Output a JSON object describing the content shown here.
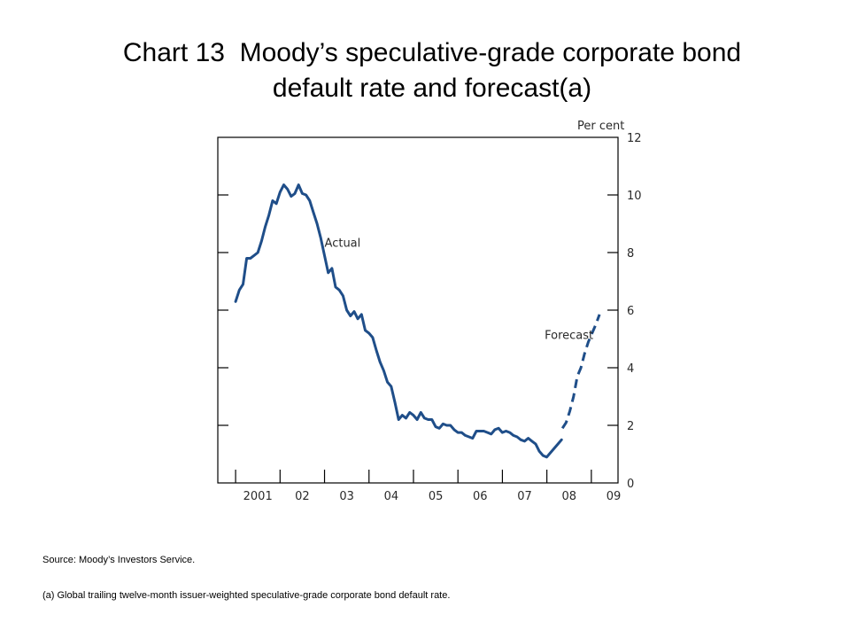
{
  "title": {
    "line1": "Chart 13  Moody’s speculative-grade corporate bond",
    "line2": "default rate and forecast(a)"
  },
  "notes": {
    "source": "Source:  Moody’s Investors Service.",
    "footnote": "(a)   Global trailing twelve-month issuer-weighted speculative-grade corporate bond default rate."
  },
  "colors": {
    "line": "#1f4e89",
    "axis": "#000000"
  },
  "chart_data": {
    "type": "line",
    "title": "Chart 13  Moody’s speculative-grade corporate bond default rate and forecast(a)",
    "xlabel": "",
    "ylabel": "",
    "y_unit_label": "Per cent",
    "ylim": [
      0,
      12
    ],
    "y_ticks": [
      0,
      2,
      4,
      6,
      8,
      10,
      12
    ],
    "y_axis_side": "right",
    "x_range": [
      2000.6,
      2009.6
    ],
    "x_ticks": [
      {
        "label": "2001",
        "year": 2001
      },
      {
        "label": "02",
        "year": 2002
      },
      {
        "label": "03",
        "year": 2003
      },
      {
        "label": "04",
        "year": 2004
      },
      {
        "label": "05",
        "year": 2005
      },
      {
        "label": "06",
        "year": 2006
      },
      {
        "label": "07",
        "year": 2007
      },
      {
        "label": "08",
        "year": 2008
      },
      {
        "label": "09",
        "year": 2009
      }
    ],
    "grid": false,
    "series": [
      {
        "name": "Actual",
        "style": "solid",
        "start_year": 2001,
        "step": 0.0833,
        "values": [
          6.3,
          6.7,
          6.9,
          7.8,
          7.8,
          7.9,
          8.0,
          8.4,
          8.9,
          9.3,
          9.8,
          9.7,
          10.1,
          10.35,
          10.2,
          9.95,
          10.05,
          10.35,
          10.05,
          10.0,
          9.8,
          9.4,
          9.0,
          8.5,
          7.9,
          7.3,
          7.45,
          6.8,
          6.7,
          6.5,
          6.0,
          5.8,
          5.95,
          5.7,
          5.85,
          5.3,
          5.2,
          5.05,
          4.6,
          4.2,
          3.9,
          3.5,
          3.35,
          2.8,
          2.2,
          2.35,
          2.25,
          2.45,
          2.35,
          2.2,
          2.45,
          2.25,
          2.2,
          2.2,
          1.95,
          1.9,
          2.05,
          2.0,
          2.0,
          1.85,
          1.75,
          1.75,
          1.65,
          1.6,
          1.55,
          1.8,
          1.8,
          1.8,
          1.75,
          1.7,
          1.85,
          1.9,
          1.75,
          1.8,
          1.75,
          1.65,
          1.6,
          1.5,
          1.45,
          1.55,
          1.45,
          1.35,
          1.1,
          0.95,
          0.9,
          1.05,
          1.2,
          1.35,
          1.5
        ]
      },
      {
        "name": "Forecast",
        "style": "dashed",
        "start_year": 2008.35,
        "step": 0.0833,
        "values": [
          1.9,
          2.1,
          2.5,
          3.0,
          3.7,
          4.0,
          4.5,
          4.9,
          5.2,
          5.5,
          5.85
        ]
      }
    ],
    "annotations": [
      {
        "text": "Actual",
        "x": 2003.0,
        "y": 8.2
      },
      {
        "text": "Forecast",
        "x": 2007.95,
        "y": 5.0
      }
    ]
  }
}
